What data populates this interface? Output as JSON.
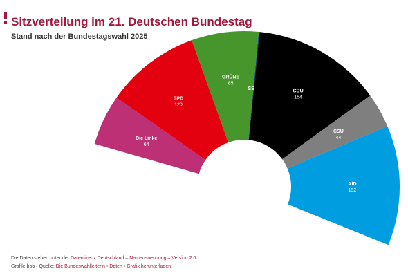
{
  "header": {
    "title": "Sitzverteilung im 21. Deutschen Bundestag",
    "subtitle": "Stand nach der Bundestagswahl 2025"
  },
  "colors": {
    "accent": "#a3173a",
    "link": "#a3173a",
    "label_light": "#ffffff"
  },
  "chart_data": {
    "type": "pie",
    "variant": "parliament-semicircle",
    "title": "Sitzverteilung im 21. Deutschen Bundestag",
    "subtitle": "Stand nach der Bundestagswahl 2025",
    "slices": [
      {
        "label": "Die Linke",
        "value": 64,
        "color": "#bd3075"
      },
      {
        "label": "SPD",
        "value": 120,
        "color": "#e3000f"
      },
      {
        "label": "GRÜNE",
        "value": 85,
        "color": "#46962b"
      },
      {
        "label": "SSW",
        "value": 1,
        "color": "#003c8f"
      },
      {
        "label": "CDU",
        "value": 164,
        "color": "#000000"
      },
      {
        "label": "CSU",
        "value": 44,
        "color": "#7f7f7f"
      },
      {
        "label": "AfD",
        "value": 152,
        "color": "#009ee0"
      }
    ],
    "total": 630
  },
  "footer": {
    "license_prefix": "Die Daten stehen unter der ",
    "license_link": "Datenlizenz Deutschland – Namensnennung – Version 2.0",
    "license_suffix": ".",
    "credit_prefix": "Grafik: bpb • Quelle: ",
    "source_link": "Die Bundeswahlleiterin",
    "separator": " • ",
    "data_link": "Daten",
    "download_link": "Grafik herunterladen"
  }
}
